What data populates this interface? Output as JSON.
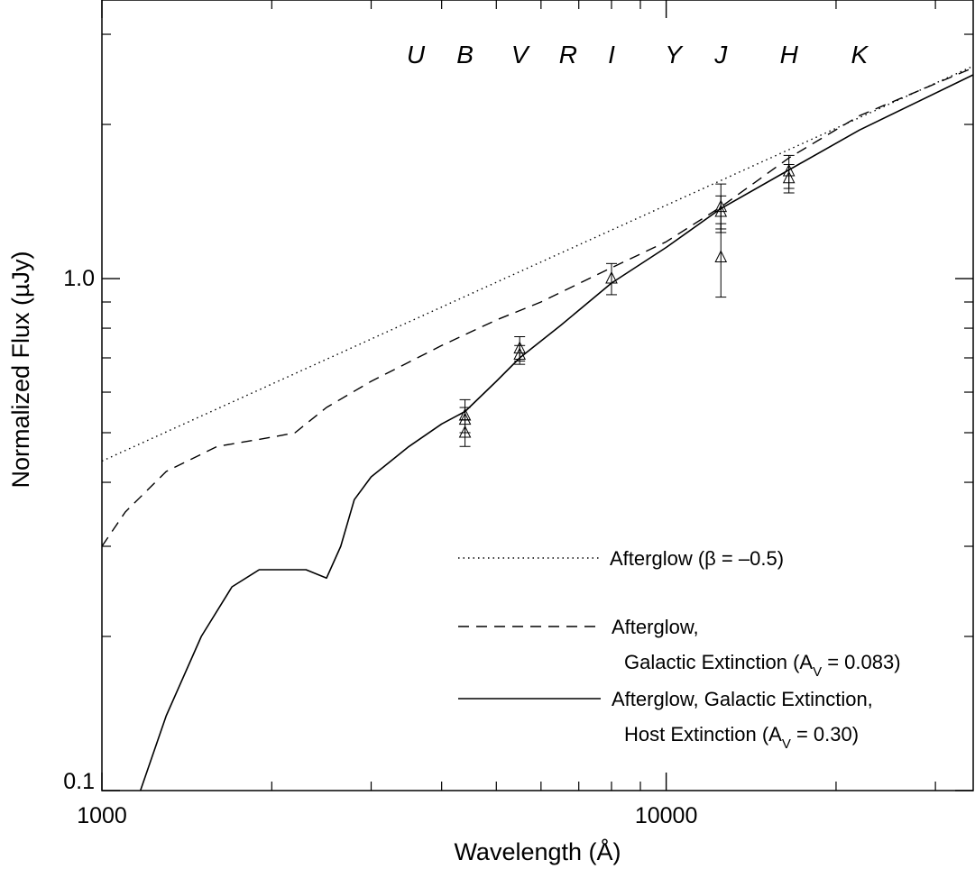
{
  "chart_data": {
    "type": "line",
    "x_scale": "log",
    "y_scale": "log",
    "xlabel": "Wavelength (Å)",
    "ylabel": "Normalized Flux (µJy)",
    "xlim": [
      1000,
      35000
    ],
    "ylim": [
      0.1,
      3.5
    ],
    "x_ticks": [
      {
        "value": 1000,
        "label": "1000"
      },
      {
        "value": 10000,
        "label": "10000"
      }
    ],
    "y_ticks": [
      {
        "value": 0.1,
        "label": "0.1"
      },
      {
        "value": 1.0,
        "label": "1.0"
      }
    ],
    "grid": false,
    "band_labels": [
      {
        "label": "U",
        "wavelength": 3600
      },
      {
        "label": "B",
        "wavelength": 4400
      },
      {
        "label": "V",
        "wavelength": 5500
      },
      {
        "label": "R",
        "wavelength": 6700
      },
      {
        "label": "I",
        "wavelength": 8000
      },
      {
        "label": "Y",
        "wavelength": 10300
      },
      {
        "label": "J",
        "wavelength": 12500
      },
      {
        "label": "H",
        "wavelength": 16500
      },
      {
        "label": "K",
        "wavelength": 22000
      }
    ],
    "series": [
      {
        "name": "Afterglow (β = –0.5)",
        "style": "dotted",
        "points": [
          [
            1000,
            0.44
          ],
          [
            35000,
            2.6
          ]
        ]
      },
      {
        "name": "Afterglow, Galactic Extinction (AV = 0.083)",
        "style": "dashed",
        "points": [
          [
            1000,
            0.3
          ],
          [
            1100,
            0.35
          ],
          [
            1300,
            0.42
          ],
          [
            1600,
            0.47
          ],
          [
            2000,
            0.49
          ],
          [
            2200,
            0.5
          ],
          [
            2500,
            0.56
          ],
          [
            3000,
            0.63
          ],
          [
            4000,
            0.74
          ],
          [
            5000,
            0.83
          ],
          [
            6000,
            0.9
          ],
          [
            8000,
            1.05
          ],
          [
            10000,
            1.18
          ],
          [
            12500,
            1.38
          ],
          [
            16500,
            1.72
          ],
          [
            22000,
            2.08
          ],
          [
            35000,
            2.58
          ]
        ]
      },
      {
        "name": "Afterglow, Galactic Extinction, Host Extinction (AV = 0.30)",
        "style": "solid",
        "points": [
          [
            1170,
            0.1
          ],
          [
            1300,
            0.14
          ],
          [
            1500,
            0.2
          ],
          [
            1700,
            0.25
          ],
          [
            1900,
            0.27
          ],
          [
            2100,
            0.27
          ],
          [
            2300,
            0.27
          ],
          [
            2500,
            0.26
          ],
          [
            2650,
            0.3
          ],
          [
            2800,
            0.37
          ],
          [
            3000,
            0.41
          ],
          [
            3500,
            0.47
          ],
          [
            4000,
            0.52
          ],
          [
            4400,
            0.55
          ],
          [
            5000,
            0.63
          ],
          [
            5500,
            0.7
          ],
          [
            6500,
            0.81
          ],
          [
            8000,
            0.98
          ],
          [
            10000,
            1.15
          ],
          [
            12500,
            1.37
          ],
          [
            16500,
            1.63
          ],
          [
            22000,
            1.95
          ],
          [
            35000,
            2.5
          ]
        ]
      }
    ],
    "observations": [
      {
        "x": 4400,
        "y": 0.54,
        "yerr": 0.04
      },
      {
        "x": 4400,
        "y": 0.53,
        "yerr": 0.03
      },
      {
        "x": 4400,
        "y": 0.5,
        "yerr": 0.03
      },
      {
        "x": 5500,
        "y": 0.73,
        "yerr": 0.04
      },
      {
        "x": 5500,
        "y": 0.71,
        "yerr": 0.03
      },
      {
        "x": 8000,
        "y": 1.0,
        "yerr": 0.07
      },
      {
        "x": 12500,
        "y": 1.38,
        "yerr": 0.15
      },
      {
        "x": 12500,
        "y": 1.35,
        "yerr": 0.1
      },
      {
        "x": 12500,
        "y": 1.1,
        "yerr": 0.18
      },
      {
        "x": 16500,
        "y": 1.62,
        "yerr": 0.12
      },
      {
        "x": 16500,
        "y": 1.57,
        "yerr": 0.1
      }
    ],
    "legend": {
      "placement": "lower-right",
      "entries": [
        {
          "style": "dotted",
          "lines": [
            "Afterglow (β = –0.5)"
          ]
        },
        {
          "style": "dashed",
          "lines": [
            "Afterglow,",
            "Galactic Extinction (A",
            "V",
            " = 0.083)"
          ]
        },
        {
          "style": "solid",
          "lines": [
            "Afterglow, Galactic Extinction,",
            "Host Extinction (A",
            "V",
            " = 0.30)"
          ]
        }
      ]
    }
  }
}
